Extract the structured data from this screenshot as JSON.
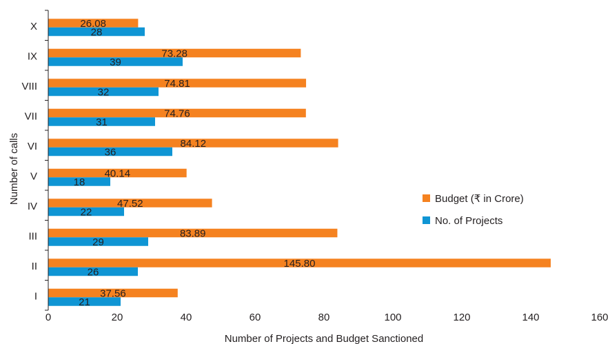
{
  "chart_data": {
    "type": "bar",
    "orientation": "horizontal",
    "categories": [
      "I",
      "II",
      "III",
      "IV",
      "V",
      "VI",
      "VII",
      "VIII",
      "IX",
      "X"
    ],
    "series": [
      {
        "name": "Budget (₹ in Crore)",
        "color": "#f58220",
        "values": [
          37.56,
          145.8,
          83.89,
          47.52,
          40.14,
          84.12,
          74.76,
          74.81,
          73.28,
          26.08
        ],
        "labels": [
          "37.56",
          "145.80",
          "83.89",
          "47.52",
          "40.14",
          "84.12",
          "74.76",
          "74.81",
          "73.28",
          "26.08"
        ]
      },
      {
        "name": "No. of Projects",
        "color": "#0f95d4",
        "values": [
          21,
          26,
          29,
          22,
          18,
          36,
          31,
          32,
          39,
          28
        ],
        "labels": [
          "21",
          "26",
          "29",
          "22",
          "18",
          "36",
          "31",
          "32",
          "39",
          "28"
        ]
      }
    ],
    "xlabel": "Number of Projects and Budget Sanctioned",
    "ylabel": "Number of calls",
    "xlim": [
      0,
      160
    ],
    "xticks": [
      "0",
      "20",
      "40",
      "60",
      "80",
      "100",
      "120",
      "140",
      "160"
    ],
    "grid": false,
    "legend_position": "right"
  }
}
